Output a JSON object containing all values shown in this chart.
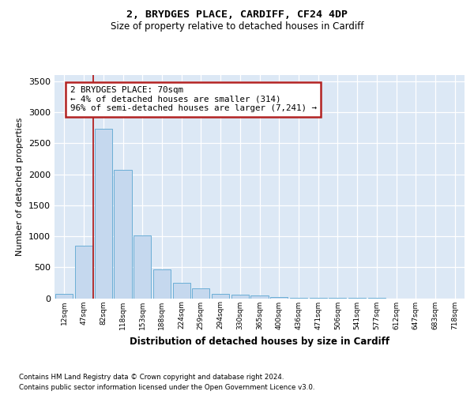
{
  "title1": "2, BRYDGES PLACE, CARDIFF, CF24 4DP",
  "title2": "Size of property relative to detached houses in Cardiff",
  "xlabel": "Distribution of detached houses by size in Cardiff",
  "ylabel": "Number of detached properties",
  "categories": [
    "12sqm",
    "47sqm",
    "82sqm",
    "118sqm",
    "153sqm",
    "188sqm",
    "224sqm",
    "259sqm",
    "294sqm",
    "330sqm",
    "365sqm",
    "400sqm",
    "436sqm",
    "471sqm",
    "506sqm",
    "541sqm",
    "577sqm",
    "612sqm",
    "647sqm",
    "683sqm",
    "718sqm"
  ],
  "values": [
    65,
    850,
    2730,
    2075,
    1010,
    465,
    245,
    155,
    75,
    60,
    45,
    20,
    12,
    8,
    5,
    2,
    1,
    0,
    0,
    0,
    0
  ],
  "bar_color": "#c5d8ee",
  "bar_edge_color": "#6baed6",
  "bg_color": "#dce8f5",
  "vline_color": "#b22222",
  "vline_x": 1.5,
  "annotation_text": "2 BRYDGES PLACE: 70sqm\n← 4% of detached houses are smaller (314)\n96% of semi-detached houses are larger (7,241) →",
  "annotation_box_edgecolor": "#b22222",
  "ylim": [
    0,
    3600
  ],
  "yticks": [
    0,
    500,
    1000,
    1500,
    2000,
    2500,
    3000,
    3500
  ],
  "footnote1": "Contains HM Land Registry data © Crown copyright and database right 2024.",
  "footnote2": "Contains public sector information licensed under the Open Government Licence v3.0."
}
